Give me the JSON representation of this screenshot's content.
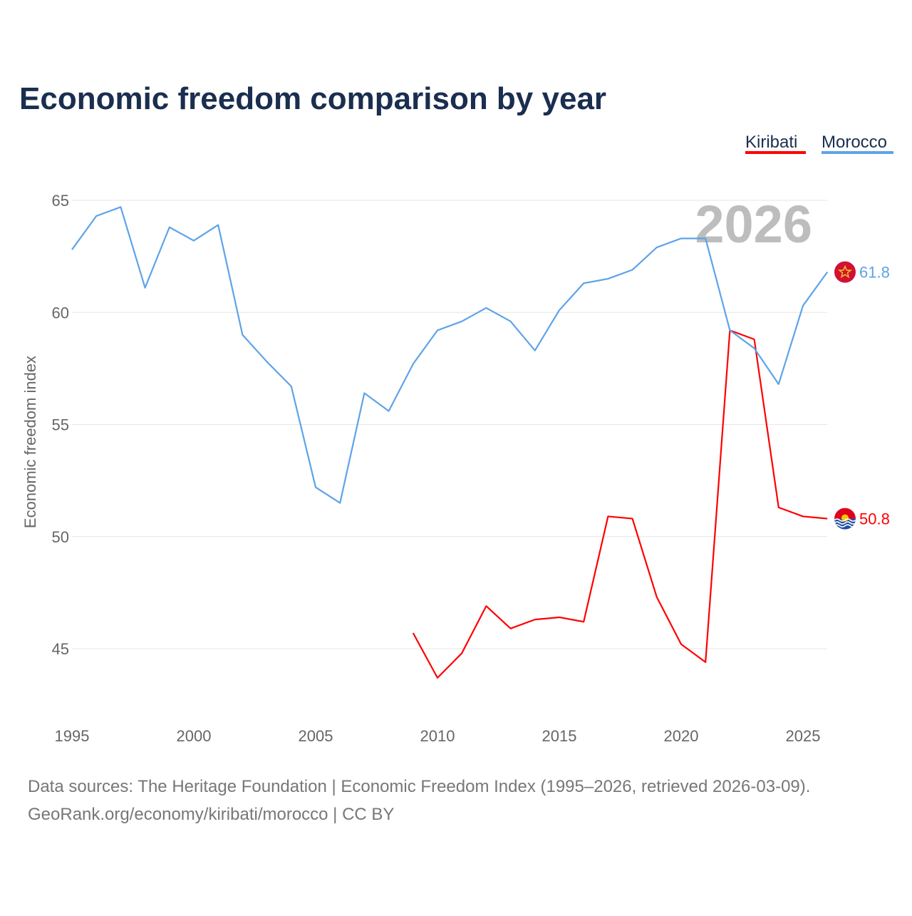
{
  "chart_data": {
    "type": "line",
    "title": "Economic freedom comparison by year",
    "xlabel": "",
    "ylabel": "Economic freedom index",
    "xlim": [
      1995,
      2026
    ],
    "ylim": [
      42,
      66.5
    ],
    "x_ticks": [
      1995,
      2000,
      2005,
      2010,
      2015,
      2020,
      2025
    ],
    "y_ticks": [
      45,
      50,
      55,
      60,
      65
    ],
    "grid": true,
    "legend_placement": "top-right",
    "year_watermark": "2026",
    "series": [
      {
        "name": "Kiribati",
        "color": "#ff0000",
        "flag": "kiribati-flag",
        "end_label": "50.8",
        "x": [
          2009,
          2010,
          2011,
          2012,
          2013,
          2014,
          2015,
          2016,
          2017,
          2018,
          2019,
          2020,
          2021,
          2022,
          2023,
          2024,
          2025,
          2026
        ],
        "values": [
          45.7,
          43.7,
          44.8,
          46.9,
          45.9,
          46.3,
          46.4,
          46.2,
          50.9,
          50.8,
          47.3,
          45.2,
          44.4,
          59.2,
          58.8,
          51.3,
          50.9,
          50.8
        ]
      },
      {
        "name": "Morocco",
        "color": "#5ea3e8",
        "flag": "morocco-flag",
        "end_label": "61.8",
        "x": [
          1995,
          1996,
          1997,
          1998,
          1999,
          2000,
          2001,
          2002,
          2003,
          2004,
          2005,
          2006,
          2007,
          2008,
          2009,
          2010,
          2011,
          2012,
          2013,
          2014,
          2015,
          2016,
          2017,
          2018,
          2019,
          2020,
          2021,
          2022,
          2023,
          2024,
          2025,
          2026
        ],
        "values": [
          62.8,
          64.3,
          64.7,
          61.1,
          63.8,
          63.2,
          63.9,
          59.0,
          57.8,
          56.7,
          52.2,
          51.5,
          56.4,
          55.6,
          57.7,
          59.2,
          59.6,
          60.2,
          59.6,
          58.3,
          60.1,
          61.3,
          61.5,
          61.9,
          62.9,
          63.3,
          63.3,
          59.2,
          58.4,
          56.8,
          60.3,
          61.8
        ]
      }
    ]
  },
  "footer": {
    "line1": "Data sources: The Heritage Foundation | Economic Freedom Index (1995–2026, retrieved 2026-03-09).",
    "line2": "GeoRank.org/economy/kiribati/morocco | CC BY"
  }
}
